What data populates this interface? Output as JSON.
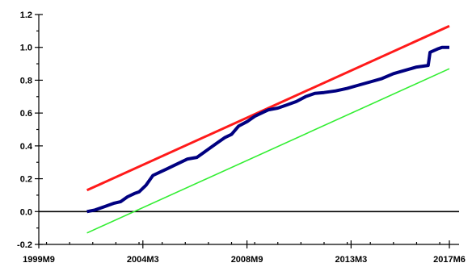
{
  "chart_data": {
    "type": "line",
    "title": "",
    "xlabel": "",
    "ylabel": "",
    "xlim": [
      1999.6667,
      2017.4167
    ],
    "ylim": [
      -0.2,
      1.2
    ],
    "x_ticks": [
      {
        "label": "1999M9",
        "value": 1999.6667
      },
      {
        "label": "2004M3",
        "value": 2004.1667
      },
      {
        "label": "2008M9",
        "value": 2008.6667
      },
      {
        "label": "2013M3",
        "value": 2013.1667
      },
      {
        "label": "2017M6",
        "value": 2017.4167
      }
    ],
    "y_ticks": [
      -0.2,
      0.0,
      0.2,
      0.4,
      0.6,
      0.8,
      1.0,
      1.2
    ],
    "grid": false,
    "reference_line": 0.0,
    "series": [
      {
        "color": "#ff1a1a",
        "points": [
          [
            2001.75,
            0.13
          ],
          [
            2017.4167,
            1.13
          ]
        ]
      },
      {
        "color": "#000080",
        "points": [
          [
            2001.75,
            0.0
          ],
          [
            2002.1,
            0.01
          ],
          [
            2002.5,
            0.03
          ],
          [
            2002.9,
            0.05
          ],
          [
            2003.2,
            0.06
          ],
          [
            2003.5,
            0.09
          ],
          [
            2003.8,
            0.11
          ],
          [
            2004.0,
            0.12
          ],
          [
            2004.3,
            0.16
          ],
          [
            2004.6,
            0.22
          ],
          [
            2004.9,
            0.24
          ],
          [
            2005.2,
            0.26
          ],
          [
            2005.5,
            0.28
          ],
          [
            2005.8,
            0.3
          ],
          [
            2006.1,
            0.32
          ],
          [
            2006.5,
            0.33
          ],
          [
            2006.8,
            0.36
          ],
          [
            2007.1,
            0.39
          ],
          [
            2007.4,
            0.42
          ],
          [
            2007.7,
            0.45
          ],
          [
            2008.0,
            0.47
          ],
          [
            2008.3,
            0.52
          ],
          [
            2008.7,
            0.55
          ],
          [
            2009.0,
            0.58
          ],
          [
            2009.3,
            0.6
          ],
          [
            2009.6,
            0.62
          ],
          [
            2010.0,
            0.63
          ],
          [
            2010.4,
            0.65
          ],
          [
            2010.8,
            0.67
          ],
          [
            2011.2,
            0.7
          ],
          [
            2011.6,
            0.72
          ],
          [
            2012.0,
            0.725
          ],
          [
            2012.5,
            0.735
          ],
          [
            2013.0,
            0.75
          ],
          [
            2013.5,
            0.77
          ],
          [
            2014.0,
            0.79
          ],
          [
            2014.5,
            0.81
          ],
          [
            2015.0,
            0.84
          ],
          [
            2015.5,
            0.86
          ],
          [
            2016.0,
            0.88
          ],
          [
            2016.5,
            0.89
          ],
          [
            2016.58,
            0.97
          ],
          [
            2016.9,
            0.99
          ],
          [
            2017.1,
            1.0
          ],
          [
            2017.4167,
            1.0
          ]
        ]
      },
      {
        "color": "#33ee33",
        "points": [
          [
            2001.75,
            -0.13
          ],
          [
            2017.4167,
            0.87
          ]
        ]
      }
    ]
  }
}
